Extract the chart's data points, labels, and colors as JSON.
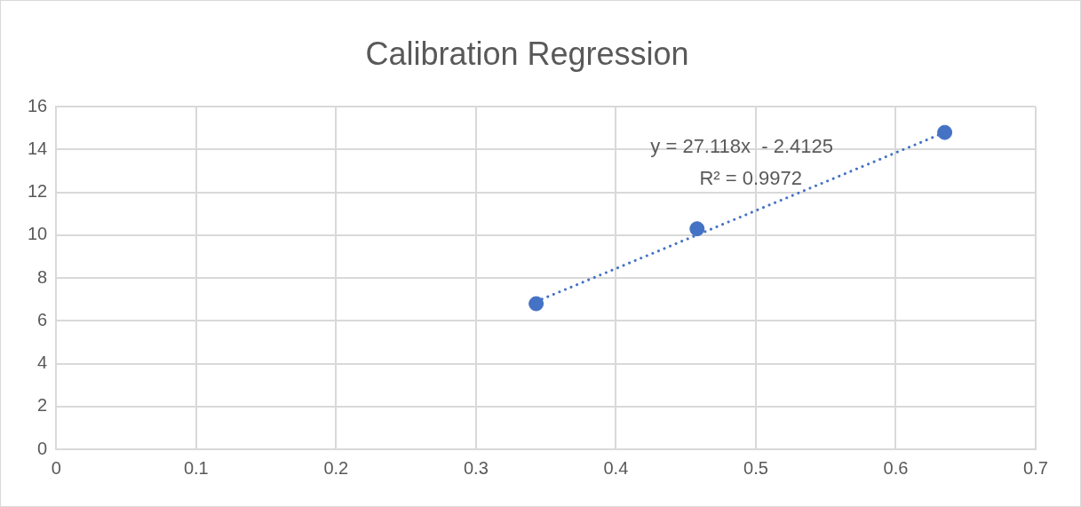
{
  "chart_data": {
    "type": "scatter",
    "title": "Calibration Regression",
    "xlim": [
      0,
      0.7
    ],
    "xticks": [
      0,
      0.1,
      0.2,
      0.3,
      0.4,
      0.5,
      0.6,
      0.7
    ],
    "ylim": [
      0,
      16
    ],
    "yticks": [
      0,
      2,
      4,
      6,
      8,
      10,
      12,
      14,
      16
    ],
    "grid": true,
    "legend": false,
    "marker": "circle",
    "series": [
      {
        "type": "scatter",
        "color": "#4472c4",
        "x": [
          0.343,
          0.458,
          0.635
        ],
        "values": [
          6.8,
          10.3,
          14.8
        ]
      },
      {
        "type": "line",
        "color": "#4472c4",
        "line_style": "dotted",
        "marker": "none",
        "x": [
          0.343,
          0.635
        ],
        "values": [
          6.9,
          14.8
        ]
      }
    ],
    "annotations": [
      "y = 27.118x  - 2.4125",
      "R² = 0.9972"
    ]
  }
}
